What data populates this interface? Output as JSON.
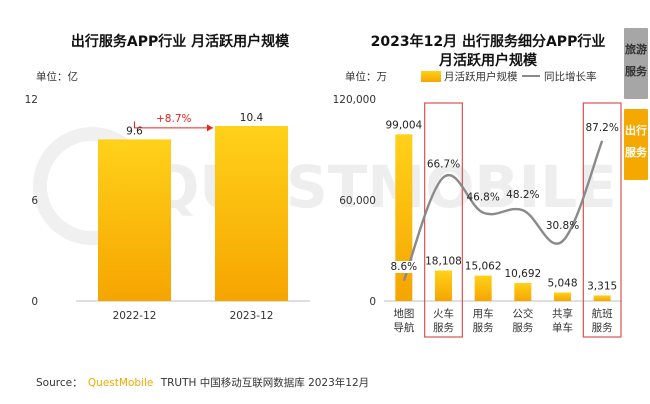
{
  "watermark": "QUESTMOBILE",
  "side_tabs": [
    {
      "label": "旅游服务",
      "active": false,
      "color": "#a6a6a6"
    },
    {
      "label": "出行服务",
      "active": true,
      "color": "#f5a800"
    }
  ],
  "source": {
    "prefix": "Source：",
    "brand": "QuestMobile",
    "suffix": "TRUTH 中国移动互联网数据库 2023年12月"
  },
  "colors": {
    "bar_top": "#ffd11a",
    "bar_bottom": "#f6a500",
    "line": "#8a8a8a",
    "growth": "#e8231a",
    "highlight_box": "#d9534f"
  },
  "chart_data": [
    {
      "type": "bar",
      "title": "出行服务APP行业 月活跃用户规模",
      "unit_label": "单位：亿",
      "categories": [
        "2022-12",
        "2023-12"
      ],
      "values": [
        9.6,
        10.4
      ],
      "value_labels": [
        "9.6",
        "10.4"
      ],
      "ylim": [
        0,
        12
      ],
      "yticks": [
        0,
        6,
        12
      ],
      "annotation": {
        "text": "+8.7%",
        "from": 0,
        "to": 1
      }
    },
    {
      "type": "bar",
      "title_lines": [
        "2023年12月 出行服务细分APP行业",
        "月活跃用户规模"
      ],
      "unit_label": "单位：万",
      "legend": {
        "bar": "月活跃用户规模",
        "line": "同比增长率"
      },
      "categories": [
        [
          "地图",
          "导航"
        ],
        [
          "火车",
          "服务"
        ],
        [
          "用车",
          "服务"
        ],
        [
          "公交",
          "服务"
        ],
        [
          "共享",
          "单车"
        ],
        [
          "航班",
          "服务"
        ]
      ],
      "series": [
        {
          "name": "月活跃用户规模",
          "type": "bar",
          "values": [
            99004,
            18108,
            15062,
            10692,
            5048,
            3315
          ],
          "value_labels": [
            "99,004",
            "18,108",
            "15,062",
            "10,692",
            "5,048",
            "3,315"
          ]
        },
        {
          "name": "同比增长率",
          "type": "line",
          "values": [
            8.6,
            66.7,
            46.8,
            48.2,
            30.8,
            87.2
          ],
          "value_labels": [
            "8.6%",
            "66.7%",
            "46.8%",
            "48.2%",
            "30.8%",
            "87.2%"
          ]
        }
      ],
      "ylim": [
        0,
        120000
      ],
      "yticks": [
        0,
        60000,
        120000
      ],
      "ytick_labels": [
        "0",
        "60,000",
        "120,000"
      ],
      "highlighted_categories": [
        1,
        5
      ]
    }
  ]
}
